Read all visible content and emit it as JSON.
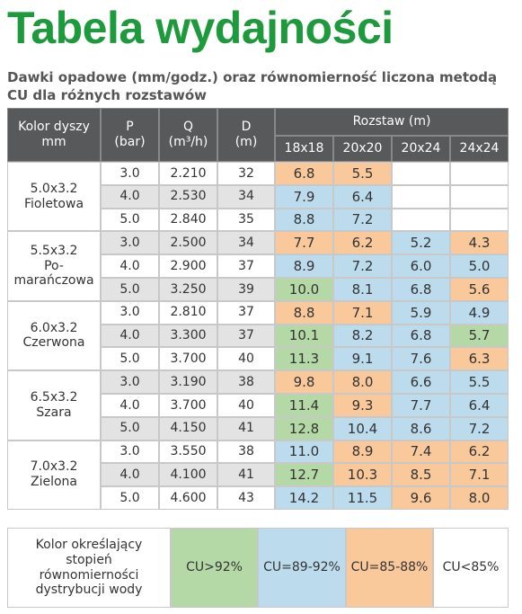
{
  "header": {
    "title": "Tabela wydajności",
    "subtitle": [
      "Dawki opadowe (mm/godz.) oraz równomierność liczona metodą",
      "CU dla różnych rozstawów"
    ]
  },
  "table": {
    "columns": [
      [
        "Kolor dyszy",
        "mm"
      ],
      [
        "P",
        "(bar)"
      ],
      [
        "Q",
        "(m³/h)"
      ],
      [
        "D",
        "(m)"
      ]
    ],
    "spacing_title": "Rozstaw (m)",
    "spacings": [
      "18x18",
      "20x20",
      "20x24",
      "24x24"
    ],
    "groups": [
      {
        "label": [
          "5.0x3.2",
          "Fioletowa"
        ],
        "rows": [
          {
            "p": "3.0",
            "q": "2.210",
            "d": "32",
            "cells": [
              {
                "text": "6.8",
                "color": "#f9c89b"
              },
              {
                "text": "5.5",
                "color": "#f9c89b"
              },
              null,
              null
            ]
          },
          {
            "p": "4.0",
            "q": "2.530",
            "d": "34",
            "cells": [
              {
                "text": "7.9",
                "color": "#bcdcee"
              },
              {
                "text": "6.4",
                "color": "#bcdcee"
              },
              null,
              null
            ]
          },
          {
            "p": "5.0",
            "q": "2.840",
            "d": "35",
            "cells": [
              {
                "text": "8.8",
                "color": "#bcdcee"
              },
              {
                "text": "7.2",
                "color": "#bcdcee"
              },
              null,
              null
            ]
          }
        ]
      },
      {
        "label": [
          "5.5x3.2",
          "Po-",
          "marańczowa"
        ],
        "rows": [
          {
            "p": "3.0",
            "q": "2.500",
            "d": "34",
            "cells": [
              {
                "text": "7.7",
                "color": "#f9c89b"
              },
              {
                "text": "6.2",
                "color": "#f9c89b"
              },
              {
                "text": "5.2",
                "color": "#bcdcee"
              },
              {
                "text": "4.3",
                "color": "#f9c89b"
              }
            ]
          },
          {
            "p": "4.0",
            "q": "2.900",
            "d": "37",
            "cells": [
              {
                "text": "8.9",
                "color": "#bcdcee"
              },
              {
                "text": "7.2",
                "color": "#bcdcee"
              },
              {
                "text": "6.0",
                "color": "#bcdcee"
              },
              {
                "text": "5.0",
                "color": "#bcdcee"
              }
            ]
          },
          {
            "p": "5.0",
            "q": "3.250",
            "d": "39",
            "cells": [
              {
                "text": "10.0",
                "color": "#b5d9a6"
              },
              {
                "text": "8.1",
                "color": "#bcdcee"
              },
              {
                "text": "6.8",
                "color": "#bcdcee"
              },
              {
                "text": "5.6",
                "color": "#f9c89b"
              }
            ]
          }
        ]
      },
      {
        "label": [
          "6.0x3.2",
          "Czerwona"
        ],
        "rows": [
          {
            "p": "3.0",
            "q": "2.810",
            "d": "37",
            "cells": [
              {
                "text": "8.8",
                "color": "#f9c89b"
              },
              {
                "text": "7.1",
                "color": "#f9c89b"
              },
              {
                "text": "5.9",
                "color": "#bcdcee"
              },
              {
                "text": "4.9",
                "color": "#bcdcee"
              }
            ]
          },
          {
            "p": "4.0",
            "q": "3.300",
            "d": "37",
            "cells": [
              {
                "text": "10.1",
                "color": "#b5d9a6"
              },
              {
                "text": "8.2",
                "color": "#bcdcee"
              },
              {
                "text": "6.8",
                "color": "#bcdcee"
              },
              {
                "text": "5.7",
                "color": "#b5d9a6"
              }
            ]
          },
          {
            "p": "5.0",
            "q": "3.700",
            "d": "40",
            "cells": [
              {
                "text": "11.3",
                "color": "#b5d9a6"
              },
              {
                "text": "9.1",
                "color": "#bcdcee"
              },
              {
                "text": "7.6",
                "color": "#bcdcee"
              },
              {
                "text": "6.3",
                "color": "#f9c89b"
              }
            ]
          }
        ]
      },
      {
        "label": [
          "6.5x3.2",
          "Szara"
        ],
        "rows": [
          {
            "p": "3.0",
            "q": "3.190",
            "d": "38",
            "cells": [
              {
                "text": "9.8",
                "color": "#f9c89b"
              },
              {
                "text": "8.0",
                "color": "#f9c89b"
              },
              {
                "text": "6.6",
                "color": "#bcdcee"
              },
              {
                "text": "5.5",
                "color": "#bcdcee"
              }
            ]
          },
          {
            "p": "4.0",
            "q": "3.700",
            "d": "40",
            "cells": [
              {
                "text": "11.4",
                "color": "#b5d9a6"
              },
              {
                "text": "9.3",
                "color": "#f9c89b"
              },
              {
                "text": "7.7",
                "color": "#bcdcee"
              },
              {
                "text": "6.4",
                "color": "#bcdcee"
              }
            ]
          },
          {
            "p": "5.0",
            "q": "4.150",
            "d": "41",
            "cells": [
              {
                "text": "12.8",
                "color": "#b5d9a6"
              },
              {
                "text": "10.4",
                "color": "#bcdcee"
              },
              {
                "text": "8.6",
                "color": "#bcdcee"
              },
              {
                "text": "7.2",
                "color": "#bcdcee"
              }
            ]
          }
        ]
      },
      {
        "label": [
          "7.0x3.2",
          "Zielona"
        ],
        "rows": [
          {
            "p": "3.0",
            "q": "3.550",
            "d": "38",
            "cells": [
              {
                "text": "11.0",
                "color": "#bcdcee"
              },
              {
                "text": "8.9",
                "color": "#f9c89b"
              },
              {
                "text": "7.4",
                "color": "#f9c89b"
              },
              {
                "text": "6.2",
                "color": "#f9c89b"
              }
            ]
          },
          {
            "p": "4.0",
            "q": "4.100",
            "d": "41",
            "cells": [
              {
                "text": "12.7",
                "color": "#b5d9a6"
              },
              {
                "text": "10.3",
                "color": "#f9c89b"
              },
              {
                "text": "8.5",
                "color": "#f9c89b"
              },
              {
                "text": "7.1",
                "color": "#f9c89b"
              }
            ]
          },
          {
            "p": "5.0",
            "q": "4.600",
            "d": "43",
            "cells": [
              {
                "text": "14.2",
                "color": "#bcdcee"
              },
              {
                "text": "11.5",
                "color": "#bcdcee"
              },
              {
                "text": "9.6",
                "color": "#f9c89b"
              },
              {
                "text": "8.0",
                "color": "#f9c89b"
              }
            ]
          }
        ]
      }
    ]
  },
  "legend": {
    "label": [
      "Kolor określający",
      "stopień",
      "równomierności",
      "dystrybucji wody"
    ],
    "items": [
      {
        "label": "CU>92%",
        "color": "#b5d9a6"
      },
      {
        "label": "CU=89-92%",
        "color": "#bcdcee"
      },
      {
        "label": "CU=85-88%",
        "color": "#f9c89b"
      },
      {
        "label": "CU<85%",
        "color": "#ffffff"
      }
    ]
  }
}
